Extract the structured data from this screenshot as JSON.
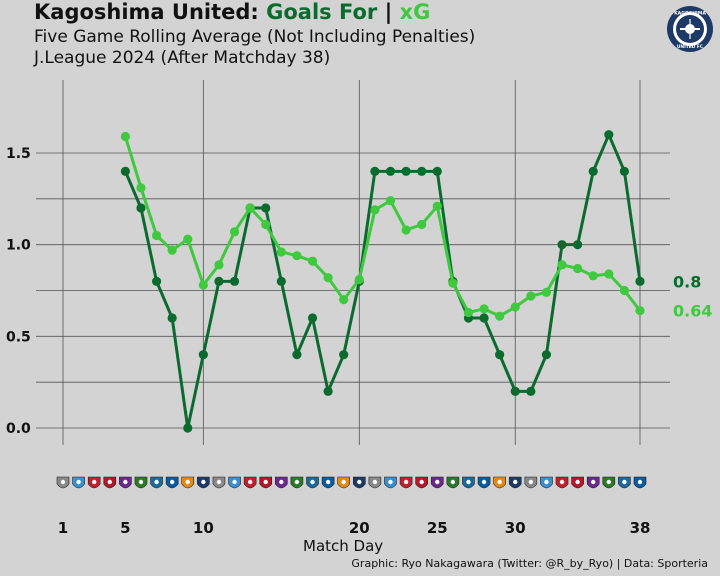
{
  "header": {
    "title_team": "Kagoshima United:",
    "title_goals": "Goals For",
    "title_sep": "|",
    "title_xg": "xG",
    "subtitle": "Five Game Rolling Average (Not Including Penalties)",
    "subtitle2": "J.League 2024 (After Matchday 38)"
  },
  "logo": {
    "icon": "kagoshima-united-crest-icon",
    "text_top": "KAGOSHIMA",
    "text_bottom": "UNITED FC"
  },
  "credit": "Graphic: Ryo Nakagawara (Twitter: @R_by_Ryo) | Data: Sporteria",
  "colors": {
    "goals": "#0b6b2e",
    "xg": "#3ec93e",
    "background": "#d3d3d3",
    "grid": "#555555"
  },
  "opponent_badges": "one small club-crest icon per matchday 1–38 along the x-axis",
  "chart_data": {
    "type": "line",
    "xlabel": "Match Day",
    "ylabel": "",
    "xlim": [
      1,
      38
    ],
    "ylim": [
      0,
      1.6
    ],
    "x_ticks": [
      1,
      5,
      10,
      20,
      25,
      30,
      38
    ],
    "y_ticks": [
      0.0,
      0.5,
      1.0,
      1.5
    ],
    "y_tick_labels": [
      "0.0",
      "0.5",
      "1.0",
      "1.5"
    ],
    "grid": true,
    "series": [
      {
        "name": "Goals For",
        "color": "#0b6b2e",
        "x": [
          5,
          6,
          7,
          8,
          9,
          10,
          11,
          12,
          13,
          14,
          15,
          16,
          17,
          18,
          19,
          20,
          21,
          22,
          23,
          24,
          25,
          26,
          27,
          28,
          29,
          30,
          31,
          32,
          33,
          34,
          35,
          36,
          37,
          38
        ],
        "values": [
          1.4,
          1.2,
          0.8,
          0.6,
          0.0,
          0.4,
          0.8,
          0.8,
          1.2,
          1.2,
          0.8,
          0.4,
          0.6,
          0.2,
          0.4,
          0.8,
          1.4,
          1.4,
          1.4,
          1.4,
          1.4,
          0.8,
          0.6,
          0.6,
          0.4,
          0.2,
          0.2,
          0.4,
          1.0,
          1.0,
          1.4,
          1.6,
          1.4,
          0.8
        ],
        "end_label": "0.8"
      },
      {
        "name": "xG",
        "color": "#3ec93e",
        "x": [
          5,
          6,
          7,
          8,
          9,
          10,
          11,
          12,
          13,
          14,
          15,
          16,
          17,
          18,
          19,
          20,
          21,
          22,
          23,
          24,
          25,
          26,
          27,
          28,
          29,
          30,
          31,
          32,
          33,
          34,
          35,
          36,
          37,
          38
        ],
        "values": [
          1.59,
          1.31,
          1.05,
          0.97,
          1.03,
          0.78,
          0.89,
          1.07,
          1.2,
          1.11,
          0.96,
          0.94,
          0.91,
          0.82,
          0.7,
          0.81,
          1.19,
          1.24,
          1.08,
          1.11,
          1.21,
          0.79,
          0.63,
          0.65,
          0.61,
          0.66,
          0.72,
          0.74,
          0.89,
          0.87,
          0.83,
          0.84,
          0.75,
          0.64
        ],
        "end_label": "0.64"
      }
    ]
  }
}
